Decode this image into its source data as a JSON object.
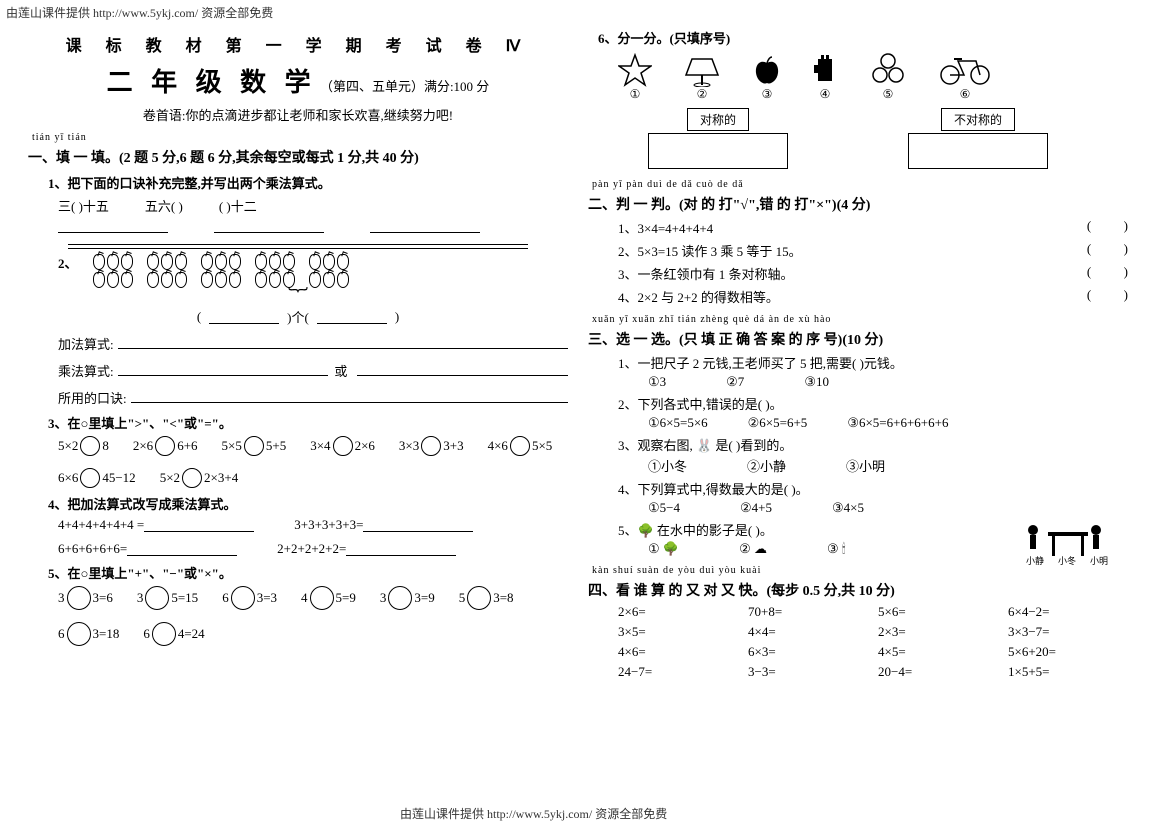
{
  "header_link": "由莲山课件提供 http://www.5ykj.com/    资源全部免费",
  "footer_link": "由莲山课件提供 http://www.5ykj.com/    资源全部免费",
  "title": {
    "line1": "课 标 教 材 第 一 学 期 考 试 卷 Ⅳ",
    "main": "二 年 级 数 学",
    "sub": "（第四、五单元）满分:100 分",
    "preface": "卷首语:你的点滴进步都让老师和家长欢喜,继续努力吧!"
  },
  "s1": {
    "pinyin": "tián yī tián",
    "heading": "一、填 一 填。(2 题 5 分,6 题 6 分,其余每空或每式 1 分,共 40 分)",
    "q1": {
      "text": "1、把下面的口诀补充完整,并写出两个乘法算式。",
      "parts": [
        "三(          )十五",
        "五六(          )",
        "(          )十二"
      ]
    },
    "q2": {
      "label": "2、",
      "group_count": 5,
      "per_group": 6,
      "paren_left": "(",
      "paren_mid": ")个(",
      "paren_right": ")",
      "add_label": "加法算式:",
      "mul_label": "乘法算式:",
      "or": "或",
      "formula_label": "所用的口诀:"
    },
    "q3": {
      "text": "3、在○里填上\">\"、\"<\"或\"=\"。",
      "items": [
        "5×2 ○ 8",
        "2×6 ○ 6+6",
        "5×5 ○ 5+5",
        "3×4 ○ 2×6",
        "3×3 ○ 3+3",
        "4×6 ○ 5×5",
        "6×6 ○ 45−12",
        "5×2 ○ 2×3+4"
      ]
    },
    "q4": {
      "text": "4、把加法算式改写成乘法算式。",
      "items": [
        "4+4+4+4+4+4 =",
        "3+3+3+3+3=",
        "6+6+6+6+6=",
        "2+2+2+2+2="
      ]
    },
    "q5": {
      "text": "5、在○里填上\"+\"、\"−\"或\"×\"。",
      "items": [
        "3 ○ 3=6",
        "3 ○ 5=15",
        "6 ○ 3=3",
        "4 ○ 5=9",
        "3 ○ 3=9",
        "5 ○ 3=8",
        "6 ○ 3=18",
        "6 ○ 4=24"
      ]
    },
    "q6": {
      "text": "6、分一分。(只填序号)",
      "icons": [
        "star",
        "trapezoid",
        "apple",
        "glove",
        "circles3",
        "bike"
      ],
      "nums": [
        "①",
        "②",
        "③",
        "④",
        "⑤",
        "⑥"
      ],
      "box1_label": "对称的",
      "box2_label": "不对称的"
    }
  },
  "s2": {
    "pinyin": "pàn yī pàn    duì de dǎ    cuò de dǎ",
    "heading": "二、判 一 判。(对 的 打\"√\",错 的 打\"×\")(4 分)",
    "items": [
      "1、3×4=4+4+4+4",
      "2、5×3=15 读作 3 乘 5 等于 15。",
      "3、一条红领巾有 1 条对称轴。",
      "4、2×2 与 2+2 的得数相等。"
    ]
  },
  "s3": {
    "pinyin": "xuǎn yī xuǎn    zhǐ tián zhèng què dá àn de xù hào",
    "heading": "三、选 一 选。(只 填 正 确 答 案 的 序 号)(10 分)",
    "q1": {
      "text": "1、一把尺子 2 元钱,王老师买了 5 把,需要(        )元钱。",
      "opts": [
        "①3",
        "②7",
        "③10"
      ]
    },
    "q2": {
      "text": "2、下列各式中,错误的是(        )。",
      "opts": [
        "①6×5=5×6",
        "②6×5=6+5",
        "③6×5=6+6+6+6+6"
      ]
    },
    "q3": {
      "text": "3、观察右图, 🐰 是(        )看到的。",
      "opts": [
        "①小冬",
        "②小静",
        "③小明"
      ]
    },
    "q4": {
      "text": "4、下列算式中,得数最大的是(        )。",
      "opts": [
        "①5−4",
        "②4+5",
        "③4×5"
      ]
    },
    "q5": {
      "text": "5、🌳 在水中的影子是(        )。",
      "opts": [
        "① 🌳",
        "② ☁",
        "③ 🕯"
      ]
    }
  },
  "s4": {
    "pinyin": "kàn shuí suàn de yòu duì yòu kuài",
    "heading": "四、看 谁 算 的 又 对 又 快。(每步 0.5 分,共 10 分)",
    "items": [
      "2×6=",
      "70+8=",
      "5×6=",
      "6×4−2=",
      "3×5=",
      "4×4=",
      "2×3=",
      "3×3−7=",
      "4×6=",
      "6×3=",
      "4×5=",
      "5×6+20=",
      "24−7=",
      "3−3=",
      "20−4=",
      "1×5+5="
    ]
  }
}
